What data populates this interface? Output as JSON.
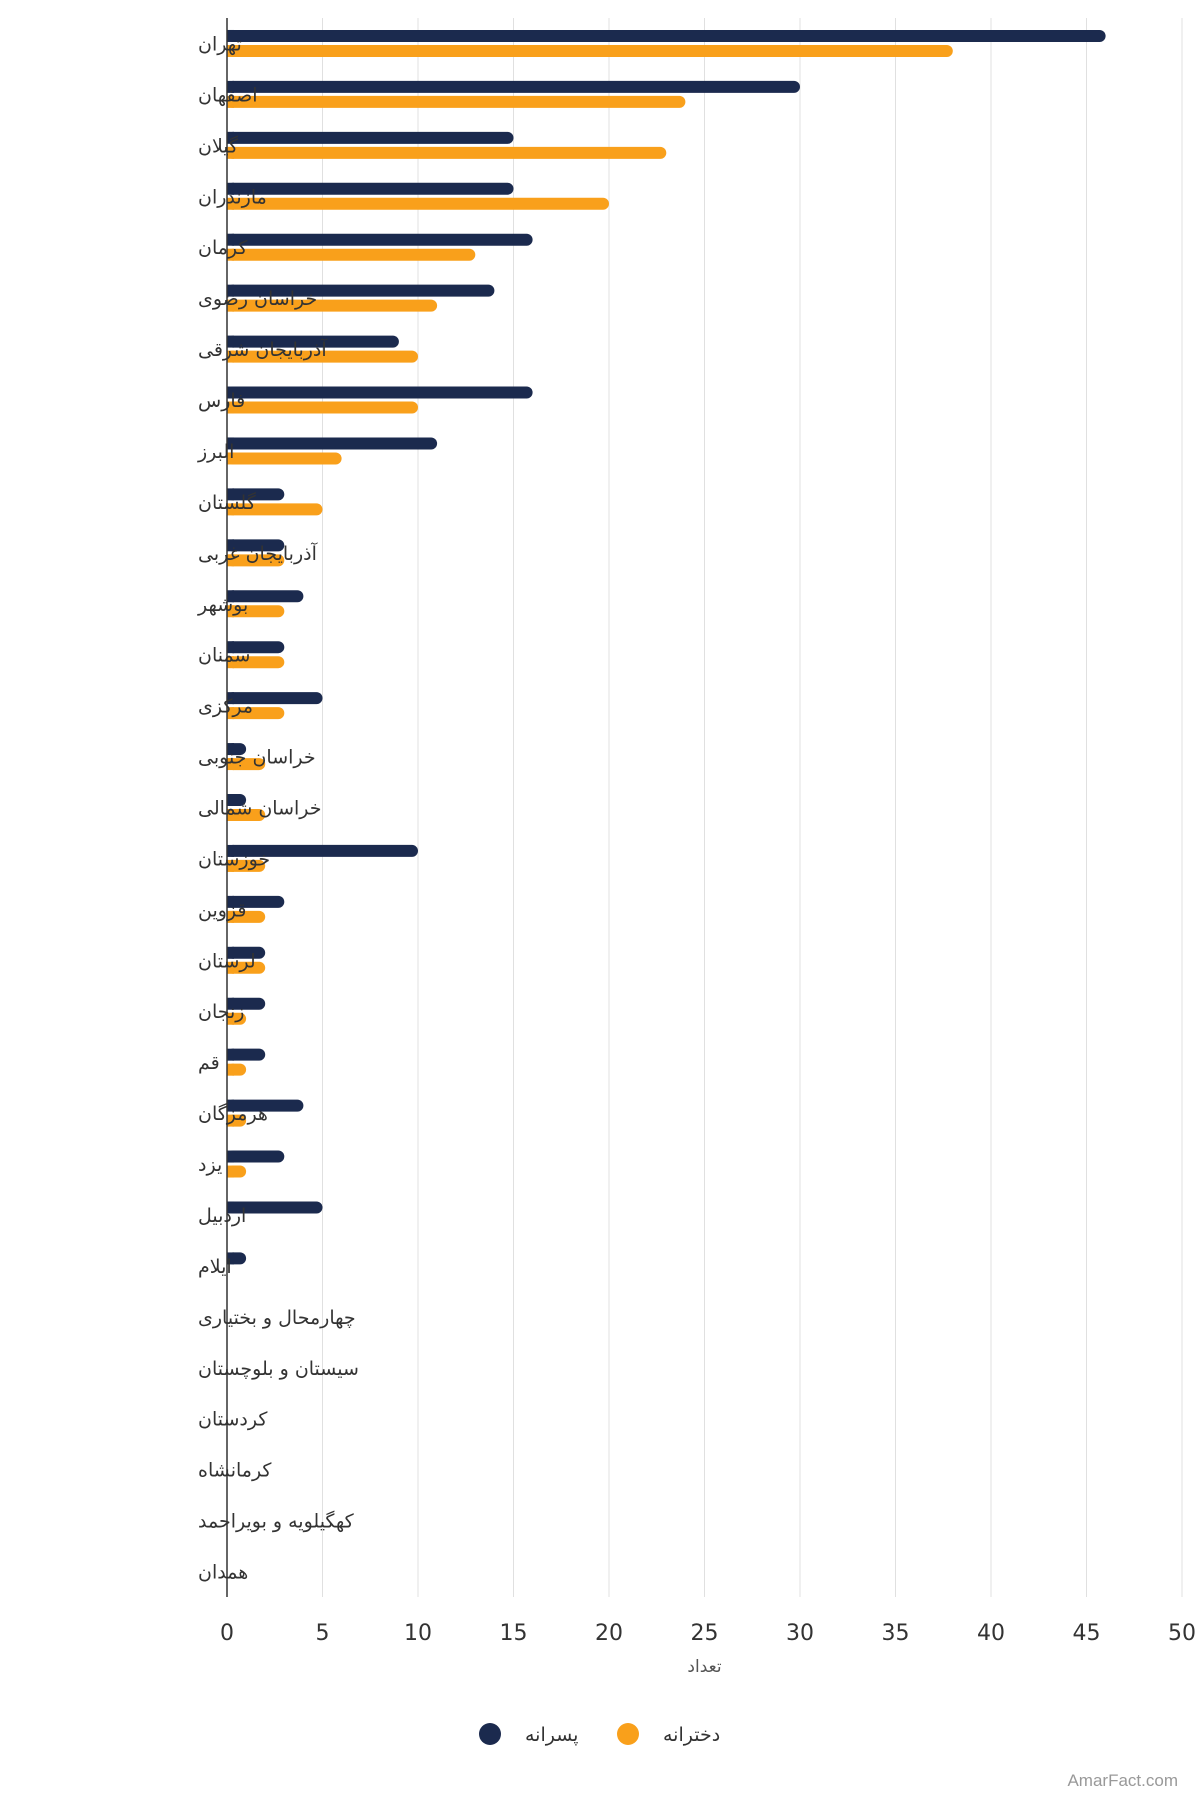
{
  "chart_data": {
    "type": "bar",
    "orientation": "horizontal",
    "categories": [
      "تهران",
      "اصفهان",
      "گیلان",
      "مازندران",
      "کرمان",
      "خراسان رضوی",
      "آذربایجان شرقی",
      "فارس",
      "البرز",
      "گلستان",
      "آذربایجان غربی",
      "بوشهر",
      "سمنان",
      "مرکزی",
      "خراسان جنوبی",
      "خراسان شمالی",
      "خوزستان",
      "قزوین",
      "لرستان",
      "زنجان",
      "قم",
      "هرمزگان",
      "یزد",
      "اردبیل",
      "ایلام",
      "چهارمحال و بختیاری",
      "سیستان و بلوچستان",
      "کردستان",
      "کرمانشاه",
      "کهگیلویه و بویراحمد",
      "همدان"
    ],
    "series": [
      {
        "name": "پسرانه",
        "color": "#1b2a4e",
        "values": [
          46,
          30,
          15,
          15,
          16,
          14,
          9,
          16,
          11,
          3,
          3,
          4,
          3,
          5,
          1,
          1,
          10,
          3,
          2,
          2,
          2,
          4,
          3,
          5,
          1,
          0,
          0,
          0,
          0,
          0,
          0
        ]
      },
      {
        "name": "دخترانه",
        "color": "#f9a01b",
        "values": [
          38,
          24,
          23,
          20,
          13,
          11,
          10,
          10,
          6,
          5,
          3,
          3,
          3,
          3,
          2,
          2,
          2,
          2,
          2,
          1,
          1,
          1,
          1,
          0,
          0,
          0,
          0,
          0,
          0,
          0,
          0
        ]
      }
    ],
    "xlim": [
      0,
      50
    ],
    "xticks": [
      0,
      5,
      10,
      15,
      20,
      25,
      30,
      35,
      40,
      45,
      50
    ],
    "xlabel": "تعداد",
    "grid": true,
    "legend_position": "bottom-center"
  },
  "credit": "AmarFact.com"
}
